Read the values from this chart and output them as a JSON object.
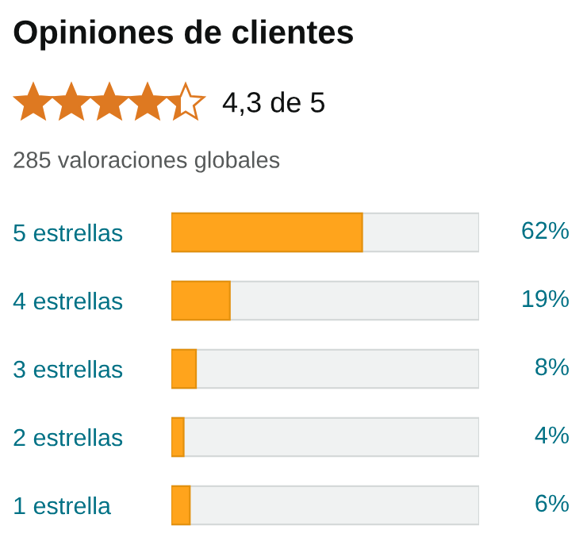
{
  "chart_data": {
    "type": "bar",
    "orientation": "horizontal",
    "title": "Opiniones de clientes",
    "subtitle": "4,3 de 5",
    "annotations": [
      "285 valoraciones globales"
    ],
    "categories": [
      "5 estrellas",
      "4 estrellas",
      "3 estrellas",
      "2 estrellas",
      "1 estrella"
    ],
    "values": [
      62,
      19,
      8,
      4,
      6
    ],
    "value_labels": [
      "62%",
      "19%",
      "8%",
      "4%",
      "6%"
    ],
    "color": "#ffa41c",
    "xlim": [
      0,
      100
    ],
    "grid": false,
    "legend": false
  }
}
